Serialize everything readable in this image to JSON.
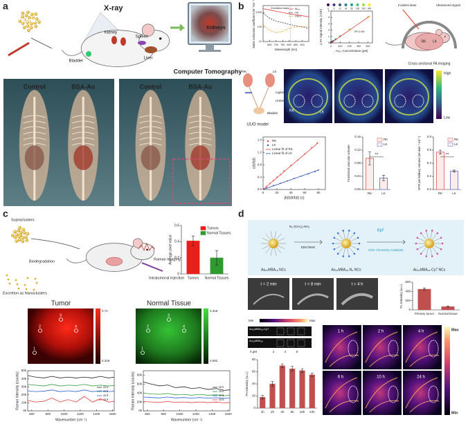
{
  "a": {
    "label": "a",
    "xray": "X-ray",
    "agent": "AuNC",
    "organs": [
      "Kidney",
      "Spleen",
      "Liver",
      "Bladder"
    ],
    "screen": "Kidneys",
    "caption": "Computer Tomography",
    "groups": [
      "Control",
      "BSA-Au",
      "Control",
      "BSA-Au"
    ]
  },
  "b": {
    "label": "b",
    "extinction": {
      "type": "line",
      "xlabel": "Wavelength (nm)",
      "ylabel": "Molar extinction coefficient (M⁻¹cm⁻¹)",
      "annotation": "Excitation laser",
      "log": true,
      "xlim": [
        600,
        950
      ],
      "xticks": [
        650,
        700,
        750,
        800,
        850,
        900
      ],
      "ylim": [
        10,
        3000
      ],
      "yticks": [
        10,
        100,
        1000
      ],
      "x": [
        600,
        650,
        700,
        750,
        800,
        850,
        900,
        950
      ],
      "series": [
        {
          "name": "Au₂₅",
          "color": "#e0413a",
          "mode": "line",
          "values": [
            1800,
            1500,
            1200,
            1000,
            800,
            700,
            600,
            500
          ]
        },
        {
          "name": "Hb",
          "color": "#333333",
          "mode": "line",
          "dash": true,
          "values": [
            900,
            400,
            250,
            200,
            150,
            120,
            100,
            80
          ]
        },
        {
          "name": "HbO₂",
          "color": "#f39c12",
          "mode": "line",
          "dash": true,
          "values": [
            150,
            60,
            40,
            50,
            80,
            100,
            110,
            100
          ]
        }
      ]
    },
    "linear": {
      "type": "scatter",
      "xlabel": "Au₂₅ Concentration (μM)",
      "ylabel": "Δ PA Signal Intensity (×10³)",
      "annotation": "R²=0.99",
      "xlim": [
        0,
        450
      ],
      "xticks": [
        0,
        100,
        200,
        300,
        400
      ],
      "ylim": [
        0,
        5
      ],
      "yticks": [
        0,
        1,
        2,
        3,
        4,
        5
      ],
      "x": [
        0,
        6,
        12,
        24,
        50,
        100,
        200,
        400
      ],
      "series": [
        {
          "mode": "points",
          "colors": [
            "#440154",
            "#46327e",
            "#365c8d",
            "#277f8e",
            "#1fa187",
            "#4ac16d",
            "#a0da39",
            "#fde725"
          ],
          "values": [
            0.05,
            0.1,
            0.17,
            0.3,
            0.55,
            1.05,
            2.1,
            4.05
          ]
        },
        {
          "mode": "line",
          "color": "#e0413a",
          "x": [
            0,
            420
          ],
          "values": [
            0,
            4.2
          ]
        }
      ]
    },
    "pa_setup": {
      "incident": "Incident laser",
      "ultrasound": "Ultrasound signal",
      "kidneys": [
        "RK",
        "LK"
      ],
      "caption": "Cross-sectional PA imaging"
    },
    "uuo": {
      "labels": [
        "RK",
        "LK",
        "Ligation",
        "Ureter",
        "Bladder"
      ],
      "caption": "UUO model"
    },
    "pa_images": {
      "kidneys": [
        "RK",
        "LK"
      ],
      "colorbar": [
        "High",
        "Low"
      ]
    },
    "kinetics": {
      "type": "scatter",
      "xlabel": "∫b(t)dt/b(t) (s)",
      "ylabel": "c(t)/b(t)",
      "xlim": [
        0,
        90
      ],
      "xticks": [
        0,
        20,
        40,
        60,
        80
      ],
      "ylim": [
        0,
        1.7
      ],
      "yticks": [
        {
          "value": 0,
          "label": "0.0"
        },
        0.4,
        0.8,
        1.2,
        1.6
      ],
      "series": [
        {
          "name": "RK",
          "color": "#e0413a",
          "mode": "points",
          "x": [
            5,
            10,
            15,
            20,
            25,
            30,
            40,
            50,
            60,
            70,
            78
          ],
          "values": [
            0.1,
            0.2,
            0.3,
            0.4,
            0.48,
            0.6,
            0.78,
            0.95,
            1.15,
            1.35,
            1.5
          ]
        },
        {
          "name": "LK",
          "color": "#2b4fb5",
          "mode": "points",
          "x": [
            5,
            15,
            25,
            35,
            45,
            55,
            65,
            75,
            80
          ],
          "values": [
            0.05,
            0.13,
            0.2,
            0.28,
            0.36,
            0.43,
            0.5,
            0.58,
            0.63
          ]
        },
        {
          "name": "Linear fit of RK",
          "color": "#e0413a",
          "mode": "line",
          "x": [
            0,
            80
          ],
          "values": [
            0,
            1.52
          ]
        },
        {
          "name": "Linear fit of LK",
          "color": "#2b4fb5",
          "mode": "line",
          "x": [
            0,
            80
          ],
          "values": [
            0,
            0.63
          ]
        }
      ]
    },
    "fvv": {
      "type": "bar",
      "ylabel": "Fractional vascular volume",
      "categories": [
        "RK",
        "LK"
      ],
      "values": [
        0.095,
        0.035
      ],
      "errors": [
        0.02,
        0.008
      ],
      "colors": [
        "#e57373",
        "#7986cb"
      ],
      "sig": "**",
      "ylim": [
        0,
        0.16
      ],
      "yticks": [
        {
          "value": 0,
          "label": "0.00"
        },
        0.04,
        0.08,
        0.12,
        0.16
      ]
    },
    "gfr": {
      "type": "bar",
      "ylabel": "GFR per kidney volume (ml min⁻¹ ml⁻¹)",
      "categories": [
        "RK",
        "LK"
      ],
      "values": [
        0.57,
        0.28
      ],
      "errors": [
        0.03,
        0.015
      ],
      "colors": [
        "#e57373",
        "#7986cb"
      ],
      "sig": "**",
      "ylim": [
        0,
        0.8
      ],
      "yticks": [
        {
          "value": 0,
          "label": "0.0"
        },
        0.2,
        0.4,
        0.6,
        0.8
      ]
    }
  },
  "c": {
    "label": "c",
    "schematic": [
      "Supraclusters",
      "Biodegradation",
      "Excretion as Nanoclusters",
      "Raman Imaging",
      "Intratumoral Injection"
    ],
    "pixel": {
      "type": "bar",
      "ylabel": "Average pixel value",
      "categories": [
        "Tumors",
        "Normal Tissues"
      ],
      "values": [
        0.41,
        0.2
      ],
      "errors": [
        0.06,
        0.09
      ],
      "colors": [
        "#e8201c",
        "#2f9b2f"
      ],
      "ylim": [
        0,
        0.6
      ],
      "yticks": [
        0,
        0.2,
        0.4,
        0.6
      ]
    },
    "tumor": {
      "title": "Tumor",
      "colorbar": [
        "0.71",
        "0.318"
      ],
      "rois": [
        "1",
        "2",
        "3",
        "4"
      ]
    },
    "normal": {
      "title": "Normal Tissue",
      "colorbar": [
        "0.318",
        "0.092"
      ],
      "rois": [
        "1",
        "2",
        "3",
        "4"
      ]
    },
    "raman_tumor": {
      "type": "line",
      "xlabel": "Wavenumber (cm⁻¹)",
      "ylabel": "Raman Intensity (counts)",
      "xlim": [
        550,
        1620
      ],
      "xticks": [
        600,
        800,
        1000,
        1200,
        1400,
        1600
      ],
      "ylim": [
        0,
        50000
      ],
      "yticks": [
        {
          "value": 0,
          "label": "0k"
        },
        {
          "value": 10000,
          "label": "10k"
        },
        {
          "value": 20000,
          "label": "20k"
        },
        {
          "value": 30000,
          "label": "30k"
        },
        {
          "value": 40000,
          "label": "40k"
        },
        {
          "value": 50000,
          "label": "50k"
        }
      ],
      "x": [
        550,
        650,
        750,
        850,
        950,
        1050,
        1150,
        1250,
        1350,
        1450,
        1550,
        1620
      ],
      "series": [
        {
          "name": "cir1",
          "color": "#222222",
          "mode": "line",
          "values": [
            44000,
            42000,
            41000,
            43000,
            41000,
            42000,
            41000,
            42000,
            41000,
            43000,
            41000,
            42000
          ]
        },
        {
          "name": "cir2",
          "color": "#2e9e3e",
          "mode": "line",
          "values": [
            33000,
            32000,
            31000,
            33000,
            31000,
            32000,
            31500,
            33000,
            31000,
            32000,
            31000,
            31500
          ]
        },
        {
          "name": "cir3",
          "color": "#2b5fd6",
          "mode": "line",
          "values": [
            25000,
            24000,
            24500,
            26000,
            24000,
            25000,
            24000,
            26000,
            24000,
            25000,
            24000,
            24500
          ]
        },
        {
          "name": "cir4",
          "color": "#e23b3b",
          "mode": "line",
          "values": [
            13000,
            11000,
            12000,
            16000,
            11000,
            14000,
            11000,
            18000,
            11000,
            15000,
            11000,
            12000
          ]
        }
      ]
    },
    "raman_normal": {
      "type": "line",
      "xlabel": "Wavenumber (cm⁻¹)",
      "ylabel": "Raman Intensity (counts)",
      "xlim": [
        550,
        1620
      ],
      "xticks": [
        600,
        800,
        1000,
        1200,
        1400,
        1600
      ],
      "ylim": [
        0,
        90000
      ],
      "yticks": [
        {
          "value": 0,
          "label": "0k"
        },
        {
          "value": 20000,
          "label": "20k"
        },
        {
          "value": 40000,
          "label": "40k"
        },
        {
          "value": 60000,
          "label": "60k"
        },
        {
          "value": 80000,
          "label": "80k"
        }
      ],
      "x": [
        550,
        650,
        750,
        850,
        950,
        1050,
        1150,
        1250,
        1350,
        1450,
        1550,
        1620
      ],
      "series": [
        {
          "name": "cir1",
          "color": "#222222",
          "mode": "line",
          "values": [
            65000,
            60000,
            56000,
            58000,
            52000,
            54000,
            50000,
            52000,
            48000,
            50000,
            46000,
            47000
          ]
        },
        {
          "name": "cir2",
          "color": "#2e9e3e",
          "mode": "line",
          "values": [
            40000,
            38000,
            37000,
            39000,
            36000,
            37000,
            35000,
            37000,
            35000,
            36000,
            34000,
            35000
          ]
        },
        {
          "name": "cir3",
          "color": "#2b5fd6",
          "mode": "line",
          "values": [
            31000,
            30000,
            29000,
            31000,
            29000,
            30000,
            28500,
            30000,
            28500,
            29500,
            28000,
            28500
          ]
        },
        {
          "name": "cir4",
          "color": "#e23b3b",
          "mode": "line",
          "values": [
            21000,
            20000,
            19000,
            21000,
            19000,
            20000,
            18500,
            20000,
            18500,
            19500,
            18000,
            18500
          ]
        }
      ]
    }
  },
  "d": {
    "label": "d",
    "synthesis": {
      "reagent": "N₃-(CH₂)₃-NH₂",
      "coupling": "EDC/NHS",
      "dye": "Cy7",
      "catalyst": "Click Chemistry Catalysts",
      "products": [
        "Au₂₅MBA₁₈ NCs",
        "Au₂₅MBA₁₈-N₃ NCs",
        "Au₂₅MBA₁₈-Cy7 NCs"
      ]
    },
    "times": [
      "t = 2 min",
      "t = 8 min",
      "t = 4 h"
    ],
    "pl": {
      "type": "bar",
      "ylabel": "PL Intensity (a.u.)",
      "categories": [
        "Primary tumor",
        "Normal tissue"
      ],
      "values": [
        450,
        70
      ],
      "errors": [
        25,
        10
      ],
      "colors": [
        "#c0504d"
      ],
      "ylim": [
        0,
        600
      ],
      "yticks": [
        0,
        200,
        400,
        600
      ]
    },
    "phantom": {
      "scale": [
        "Min",
        "Max"
      ],
      "rows": [
        "Au₂₅MBA₁₈-Cy7",
        "Au₂₅MBA₁₈"
      ],
      "concentrations": [
        "0 μM",
        "2",
        "4",
        "6"
      ]
    },
    "pa": {
      "type": "bar",
      "ylabel": "PA Intensity (a.u.)",
      "categories": [
        "1h",
        "2h",
        "4h",
        "6h",
        "10h",
        "24h"
      ],
      "values": [
        18,
        40,
        70,
        65,
        62,
        55
      ],
      "errors": [
        3,
        4,
        3,
        4,
        3,
        3
      ],
      "colors": [
        "#c0504d"
      ],
      "ylim": [
        0,
        80
      ],
      "yticks": [
        0,
        20,
        40,
        60,
        80
      ]
    },
    "pa_images": {
      "times": [
        "1 h",
        "2 h",
        "4 h",
        "6 h",
        "10 h",
        "24 h"
      ],
      "colorbar": [
        "Max",
        "Min"
      ]
    }
  }
}
